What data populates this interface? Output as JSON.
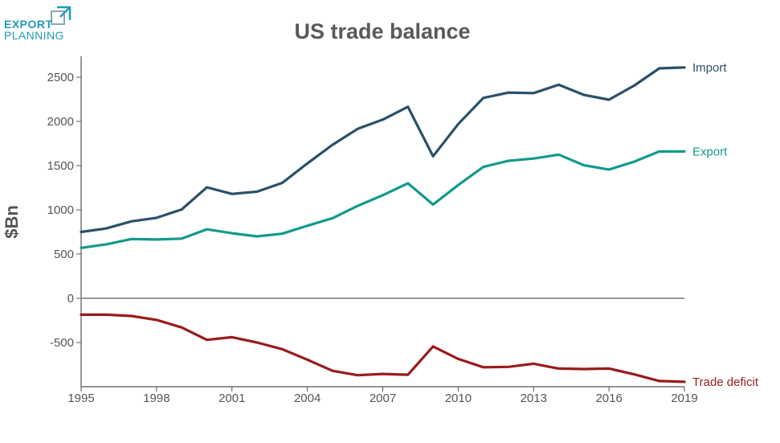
{
  "logo": {
    "line1": "EXPORT",
    "line2": "PLANNING"
  },
  "colors": {
    "import": "#2a5168",
    "export": "#129a8d",
    "deficit": "#9b1b1b",
    "axis": "#555555",
    "zero": "#999999"
  },
  "chart_data": {
    "type": "line",
    "title": "US trade balance",
    "xlabel": "",
    "ylabel": "$Bn",
    "xlim": [
      1995,
      2019
    ],
    "ylim": [
      -1000,
      2700
    ],
    "x": [
      1995,
      1996,
      1997,
      1998,
      1999,
      2000,
      2001,
      2002,
      2003,
      2004,
      2005,
      2006,
      2007,
      2008,
      2009,
      2010,
      2011,
      2012,
      2013,
      2014,
      2015,
      2016,
      2017,
      2018,
      2019
    ],
    "x_ticks": [
      "1995",
      "1998",
      "2001",
      "2004",
      "2007",
      "2010",
      "2013",
      "2016",
      "2019"
    ],
    "y_ticks": [
      "2500",
      "2000",
      "1500",
      "1000",
      "500",
      "0",
      "-500"
    ],
    "series": [
      {
        "name": "Import",
        "color_key": "import",
        "values": [
          750,
          790,
          870,
          910,
          1005,
          1255,
          1180,
          1205,
          1305,
          1525,
          1735,
          1915,
          2020,
          2165,
          1605,
          1970,
          2265,
          2325,
          2320,
          2415,
          2300,
          2245,
          2405,
          2600,
          2610
        ]
      },
      {
        "name": "Export",
        "color_key": "export",
        "values": [
          570,
          610,
          670,
          665,
          675,
          780,
          735,
          700,
          730,
          820,
          905,
          1045,
          1165,
          1300,
          1060,
          1280,
          1485,
          1555,
          1580,
          1625,
          1505,
          1455,
          1545,
          1660,
          1660
        ]
      },
      {
        "name": "Trade deficit",
        "color_key": "deficit",
        "values": [
          -185,
          -185,
          -200,
          -245,
          -330,
          -470,
          -440,
          -500,
          -575,
          -695,
          -820,
          -870,
          -855,
          -865,
          -545,
          -685,
          -780,
          -775,
          -740,
          -795,
          -800,
          -795,
          -860,
          -935,
          -945
        ]
      }
    ]
  }
}
